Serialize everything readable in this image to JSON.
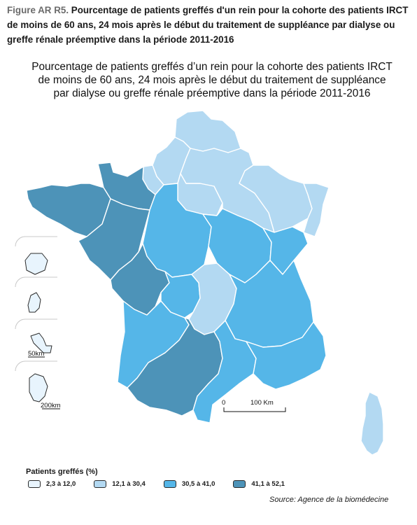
{
  "caption": {
    "label": "Figure AR R5.",
    "text": " Pourcentage de patients greffés d'un rein pour la cohorte des patients IRCT de moins de 60 ans, 24 mois après le début du traitement de suppléance par dialyse ou greffe rénale préemptive dans la période 2011-2016"
  },
  "title": {
    "line1": "Pourcentage de patients greffés d’un rein pour la cohorte des patients IRCT",
    "line2": "de moins de 60 ans, 24 mois après le début du traitement de suppléance",
    "line3": "par dialyse ou greffe rénale préemptive  dans la période 2011-2016"
  },
  "colors": {
    "class1": "#e8f4fd",
    "class2": "#b3d9f2",
    "class3": "#55b6e8",
    "class4": "#4d93b8",
    "border": "#ffffff",
    "overseas_border": "#2b2b2b"
  },
  "regions": [
    {
      "id": "hauts-de-france-north",
      "class": "class2"
    },
    {
      "id": "picardie-west",
      "class": "class2"
    },
    {
      "id": "haute-normandie",
      "class": "class2"
    },
    {
      "id": "basse-normandie",
      "class": "class4"
    },
    {
      "id": "bretagne",
      "class": "class4"
    },
    {
      "id": "pays-de-la-loire",
      "class": "class4"
    },
    {
      "id": "ile-de-france",
      "class": "class2"
    },
    {
      "id": "champagne-ardenne",
      "class": "class2"
    },
    {
      "id": "lorraine",
      "class": "class2"
    },
    {
      "id": "alsace",
      "class": "class2"
    },
    {
      "id": "centre",
      "class": "class3"
    },
    {
      "id": "bourgogne",
      "class": "class3"
    },
    {
      "id": "franche-comte",
      "class": "class3"
    },
    {
      "id": "poitou-charentes",
      "class": "class4"
    },
    {
      "id": "limousin",
      "class": "class3"
    },
    {
      "id": "auvergne",
      "class": "class2"
    },
    {
      "id": "rhone-alpes",
      "class": "class3"
    },
    {
      "id": "aquitaine",
      "class": "class3"
    },
    {
      "id": "midi-pyrenees",
      "class": "class4"
    },
    {
      "id": "languedoc-roussillon",
      "class": "class3"
    },
    {
      "id": "paca",
      "class": "class3"
    },
    {
      "id": "corse",
      "class": "class2"
    }
  ],
  "overseas": [
    {
      "id": "reunion",
      "class": "class1"
    },
    {
      "id": "martinique",
      "class": "class1"
    },
    {
      "id": "guadeloupe",
      "class": "class1"
    },
    {
      "id": "guyane",
      "class": "class1"
    }
  ],
  "overseas_scales": {
    "small": "50km",
    "large": "200km"
  },
  "scale_bar": {
    "start": "0",
    "end": "100 Km"
  },
  "legend": {
    "title": "Patients greffés (%)",
    "items": [
      {
        "label": "2,3 à 12,0",
        "class": "class1"
      },
      {
        "label": "12,1 à 30,4",
        "class": "class2"
      },
      {
        "label": "30,5 à 41,0",
        "class": "class3"
      },
      {
        "label": "41,1 à 52,1",
        "class": "class4"
      }
    ]
  },
  "source": "Source: Agence de la biomédecine"
}
